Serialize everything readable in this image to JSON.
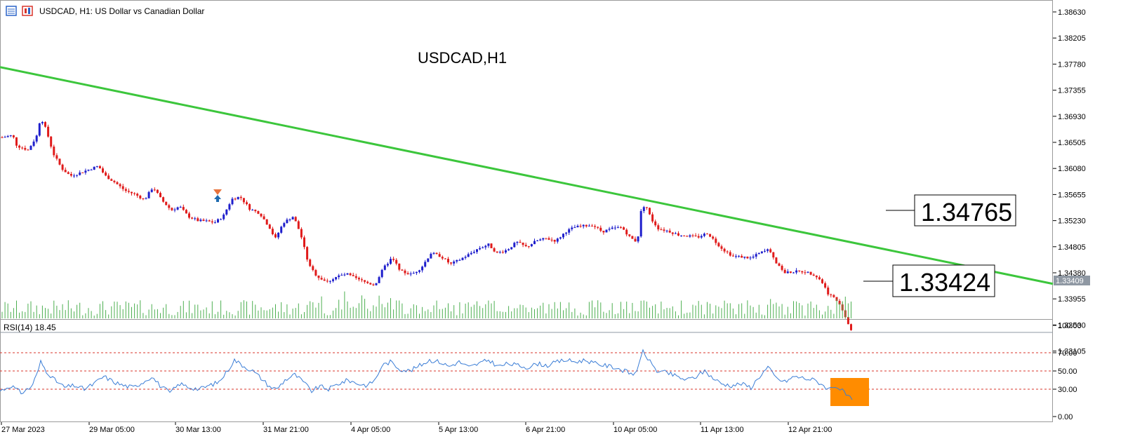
{
  "header": {
    "symbol_text": "USDCAD, H1:  US Dollar vs Canadian Dollar",
    "chart_title": "USDCAD,H1",
    "rsi_label": "RSI(14) 18.45",
    "current_price_tag": "1.33409",
    "trendline_callout": "1.34765",
    "last_price_callout": "1.33424"
  },
  "colors": {
    "bull_candle": "#1f1fcc",
    "bear_candle": "#e01b1b",
    "trendline": "#3cc63c",
    "volume": "#4caf50",
    "rsi_line": "#3a7dd6",
    "rsi_level": "#d9342b",
    "rsi_highlight": "#ff8c00",
    "current_price_line": "#8f98a3"
  },
  "chart_data": [
    {
      "type": "candlestick",
      "title": "USDCAD,H1",
      "x_tick_labels": [
        "27 Mar 2023",
        "29 Mar 05:00",
        "30 Mar 13:00",
        "31 Mar 21:00",
        "4 Apr 05:00",
        "5 Apr 13:00",
        "6 Apr 21:00",
        "10 Apr 05:00",
        "11 Apr 13:00",
        "12 Apr 21:00"
      ],
      "y_tick_labels": [
        "1.38630",
        "1.38205",
        "1.37780",
        "1.37355",
        "1.36930",
        "1.36505",
        "1.36080",
        "1.35655",
        "1.35230",
        "1.34805",
        "1.34380",
        "1.33955",
        "1.33530",
        "1.33105"
      ],
      "ylim": [
        1.3285,
        1.3871
      ],
      "close_path": [
        [
          0,
          1.3658
        ],
        [
          18,
          1.3662
        ],
        [
          24,
          1.3645
        ],
        [
          40,
          1.3638
        ],
        [
          52,
          1.366
        ],
        [
          58,
          1.3692
        ],
        [
          66,
          1.367
        ],
        [
          76,
          1.3632
        ],
        [
          88,
          1.3608
        ],
        [
          100,
          1.3596
        ],
        [
          112,
          1.36
        ],
        [
          126,
          1.3606
        ],
        [
          140,
          1.3612
        ],
        [
          150,
          1.3596
        ],
        [
          164,
          1.3585
        ],
        [
          178,
          1.3572
        ],
        [
          192,
          1.3566
        ],
        [
          206,
          1.3557
        ],
        [
          218,
          1.3578
        ],
        [
          230,
          1.3557
        ],
        [
          244,
          1.354
        ],
        [
          256,
          1.3546
        ],
        [
          268,
          1.353
        ],
        [
          282,
          1.3523
        ],
        [
          294,
          1.3522
        ],
        [
          306,
          1.352
        ],
        [
          318,
          1.353
        ],
        [
          330,
          1.3558
        ],
        [
          342,
          1.3562
        ],
        [
          356,
          1.3542
        ],
        [
          370,
          1.3535
        ],
        [
          384,
          1.3512
        ],
        [
          392,
          1.3493
        ],
        [
          404,
          1.352
        ],
        [
          418,
          1.353
        ],
        [
          428,
          1.3502
        ],
        [
          440,
          1.345
        ],
        [
          452,
          1.3432
        ],
        [
          466,
          1.3423
        ],
        [
          480,
          1.3432
        ],
        [
          494,
          1.3436
        ],
        [
          508,
          1.3428
        ],
        [
          522,
          1.3422
        ],
        [
          534,
          1.3418
        ],
        [
          546,
          1.3445
        ],
        [
          558,
          1.3462
        ],
        [
          572,
          1.344
        ],
        [
          586,
          1.3435
        ],
        [
          600,
          1.3446
        ],
        [
          614,
          1.347
        ],
        [
          628,
          1.3465
        ],
        [
          642,
          1.3452
        ],
        [
          656,
          1.346
        ],
        [
          668,
          1.3468
        ],
        [
          682,
          1.3478
        ],
        [
          696,
          1.3484
        ],
        [
          708,
          1.347
        ],
        [
          722,
          1.3475
        ],
        [
          736,
          1.3488
        ],
        [
          750,
          1.348
        ],
        [
          764,
          1.349
        ],
        [
          778,
          1.3494
        ],
        [
          792,
          1.349
        ],
        [
          806,
          1.3505
        ],
        [
          818,
          1.3512
        ],
        [
          830,
          1.3514
        ],
        [
          844,
          1.3516
        ],
        [
          858,
          1.3505
        ],
        [
          872,
          1.351
        ],
        [
          886,
          1.3512
        ],
        [
          898,
          1.3495
        ],
        [
          908,
          1.3488
        ],
        [
          914,
          1.3545
        ],
        [
          920,
          1.3548
        ],
        [
          928,
          1.3525
        ],
        [
          938,
          1.351
        ],
        [
          952,
          1.3506
        ],
        [
          966,
          1.35
        ],
        [
          980,
          1.3498
        ],
        [
          994,
          1.3496
        ],
        [
          1008,
          1.3503
        ],
        [
          1018,
          1.349
        ],
        [
          1030,
          1.3476
        ],
        [
          1044,
          1.3465
        ],
        [
          1056,
          1.3464
        ],
        [
          1070,
          1.3462
        ],
        [
          1082,
          1.347
        ],
        [
          1096,
          1.3476
        ],
        [
          1106,
          1.3455
        ],
        [
          1118,
          1.3438
        ],
        [
          1132,
          1.344
        ],
        [
          1146,
          1.344
        ],
        [
          1160,
          1.3435
        ],
        [
          1170,
          1.3425
        ],
        [
          1180,
          1.3404
        ],
        [
          1190,
          1.3396
        ],
        [
          1200,
          1.3378
        ],
        [
          1208,
          1.3356
        ],
        [
          1214,
          1.3342
        ]
      ],
      "trendline": {
        "start": [
          0,
          1.3773
        ],
        "end": [
          1500,
          1.342
        ]
      },
      "current_price": 1.33409,
      "trendline_callout_value": 1.34765,
      "last_price_callout_value": 1.33424
    },
    {
      "type": "line",
      "title": "RSI(14) 18.45",
      "y_tick_labels": [
        "100.00",
        "70.00",
        "50.00",
        "30.00",
        "0.00"
      ],
      "ylim": [
        0,
        100
      ],
      "levels": [
        70,
        50,
        30
      ],
      "values": [
        [
          0,
          28
        ],
        [
          16,
          34
        ],
        [
          30,
          26
        ],
        [
          44,
          32
        ],
        [
          52,
          45
        ],
        [
          58,
          60
        ],
        [
          66,
          50
        ],
        [
          78,
          40
        ],
        [
          92,
          32
        ],
        [
          106,
          34
        ],
        [
          120,
          30
        ],
        [
          134,
          36
        ],
        [
          148,
          44
        ],
        [
          162,
          38
        ],
        [
          176,
          34
        ],
        [
          190,
          32
        ],
        [
          204,
          38
        ],
        [
          216,
          44
        ],
        [
          228,
          34
        ],
        [
          242,
          26
        ],
        [
          256,
          36
        ],
        [
          270,
          32
        ],
        [
          284,
          30
        ],
        [
          298,
          34
        ],
        [
          312,
          38
        ],
        [
          322,
          48
        ],
        [
          334,
          62
        ],
        [
          348,
          55
        ],
        [
          360,
          50
        ],
        [
          372,
          42
        ],
        [
          384,
          33
        ],
        [
          394,
          30
        ],
        [
          406,
          40
        ],
        [
          420,
          46
        ],
        [
          432,
          38
        ],
        [
          444,
          28
        ],
        [
          456,
          33
        ],
        [
          468,
          30
        ],
        [
          482,
          36
        ],
        [
          496,
          40
        ],
        [
          510,
          36
        ],
        [
          524,
          34
        ],
        [
          536,
          42
        ],
        [
          544,
          56
        ],
        [
          556,
          60
        ],
        [
          570,
          52
        ],
        [
          584,
          50
        ],
        [
          598,
          56
        ],
        [
          612,
          62
        ],
        [
          626,
          60
        ],
        [
          640,
          55
        ],
        [
          654,
          60
        ],
        [
          668,
          54
        ],
        [
          682,
          58
        ],
        [
          696,
          62
        ],
        [
          710,
          55
        ],
        [
          724,
          58
        ],
        [
          738,
          56
        ],
        [
          752,
          54
        ],
        [
          766,
          58
        ],
        [
          780,
          56
        ],
        [
          794,
          60
        ],
        [
          806,
          62
        ],
        [
          820,
          60
        ],
        [
          834,
          62
        ],
        [
          848,
          58
        ],
        [
          862,
          56
        ],
        [
          876,
          54
        ],
        [
          890,
          50
        ],
        [
          902,
          46
        ],
        [
          910,
          55
        ],
        [
          916,
          72
        ],
        [
          926,
          60
        ],
        [
          936,
          50
        ],
        [
          950,
          48
        ],
        [
          964,
          44
        ],
        [
          978,
          40
        ],
        [
          992,
          44
        ],
        [
          1004,
          50
        ],
        [
          1016,
          42
        ],
        [
          1028,
          36
        ],
        [
          1042,
          34
        ],
        [
          1056,
          36
        ],
        [
          1070,
          32
        ],
        [
          1082,
          44
        ],
        [
          1094,
          54
        ],
        [
          1106,
          42
        ],
        [
          1118,
          38
        ],
        [
          1132,
          44
        ],
        [
          1146,
          42
        ],
        [
          1160,
          40
        ],
        [
          1170,
          36
        ],
        [
          1180,
          30
        ],
        [
          1190,
          34
        ],
        [
          1200,
          28
        ],
        [
          1208,
          22
        ],
        [
          1214,
          18.45
        ]
      ]
    }
  ]
}
